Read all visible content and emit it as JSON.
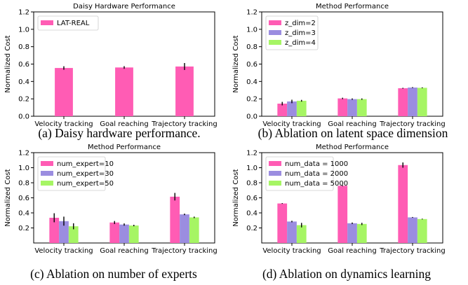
{
  "colors": {
    "series": [
      "#ff5cb4",
      "#9b8de0",
      "#a6f564"
    ],
    "axis": "#000000",
    "errorbar": "#000000",
    "legend_border": "#cccccc"
  },
  "chart_data": [
    {
      "type": "bar",
      "title": "Daisy Hardware Performance",
      "caption": "(a) Daisy hardware performance.",
      "xlabel": "",
      "ylabel": "Normalized Cost",
      "ylim": [
        0,
        1.2
      ],
      "yticks": [
        "0.0",
        "0.2",
        "0.4",
        "0.6",
        "0.8",
        "1.0",
        "1.2"
      ],
      "categories": [
        "Velocity tracking",
        "Goal reaching",
        "Trajectory tracking"
      ],
      "legend_position": "top-left",
      "grid": false,
      "series": [
        {
          "name": "LAT-REAL",
          "values": [
            0.555,
            0.561,
            0.572
          ],
          "errors": [
            0.02,
            0.015,
            0.04
          ]
        }
      ]
    },
    {
      "type": "bar",
      "title": "Method Performance",
      "caption": "(b) Ablation on latent space dimension",
      "xlabel": "",
      "ylabel": "Normalized Cost",
      "ylim": [
        0,
        1.2
      ],
      "yticks": [
        "0.0",
        "0.2",
        "0.4",
        "0.6",
        "0.8",
        "1.0",
        "1.2"
      ],
      "categories": [
        "Velocity tracking",
        "Goal reaching",
        "Trajectory tracking"
      ],
      "legend_position": "top-left",
      "grid": false,
      "series": [
        {
          "name": "z_dim=2",
          "values": [
            0.145,
            0.205,
            0.322
          ],
          "errors": [
            0.02,
            0.008,
            0.005
          ]
        },
        {
          "name": "z_dim=3",
          "values": [
            0.17,
            0.197,
            0.33
          ],
          "errors": [
            0.02,
            0.008,
            0.005
          ]
        },
        {
          "name": "z_dim=4",
          "values": [
            0.178,
            0.197,
            0.327
          ],
          "errors": [
            0.01,
            0.008,
            0.005
          ]
        }
      ]
    },
    {
      "type": "bar",
      "title": "Method Performance",
      "caption": "(c) Ablation on number of experts",
      "xlabel": "",
      "ylabel": "Normalized Cost",
      "ylim": [
        0,
        1.2
      ],
      "yticks": [
        "0.2",
        "0.4",
        "0.6",
        "0.8",
        "1.0",
        "1.2"
      ],
      "categories": [
        "Velocity tracking",
        "Goal reaching",
        "Trajectory tracking"
      ],
      "legend_position": "top-left",
      "grid": false,
      "series": [
        {
          "name": "num_expert=10",
          "values": [
            0.335,
            0.272,
            0.615
          ],
          "errors": [
            0.06,
            0.02,
            0.05
          ]
        },
        {
          "name": "num_expert=30",
          "values": [
            0.29,
            0.245,
            0.38
          ],
          "errors": [
            0.06,
            0.015,
            0.01
          ]
        },
        {
          "name": "num_expert=50",
          "values": [
            0.222,
            0.232,
            0.34
          ],
          "errors": [
            0.04,
            0.01,
            0.01
          ]
        }
      ]
    },
    {
      "type": "bar",
      "title": "Method Performance",
      "caption": "(d) Ablation on dynamics learning",
      "xlabel": "",
      "ylabel": "Normalized Cost",
      "ylim": [
        0,
        1.2
      ],
      "yticks": [
        "0.2",
        "0.4",
        "0.6",
        "0.8",
        "1.0",
        "1.2"
      ],
      "categories": [
        "Velocity tracking",
        "Goal reaching",
        "Trajectory tracking"
      ],
      "legend_position": "top-left",
      "grid": false,
      "series": [
        {
          "name": "num_data = 1000",
          "values": [
            0.525,
            0.76,
            1.035
          ],
          "errors": [
            0.005,
            0.005,
            0.035
          ]
        },
        {
          "name": "num_data = 2000",
          "values": [
            0.285,
            0.262,
            0.34
          ],
          "errors": [
            0.01,
            0.01,
            0.005
          ]
        },
        {
          "name": "num_data = 5000",
          "values": [
            0.237,
            0.253,
            0.318
          ],
          "errors": [
            0.03,
            0.015,
            0.005
          ]
        }
      ]
    }
  ]
}
